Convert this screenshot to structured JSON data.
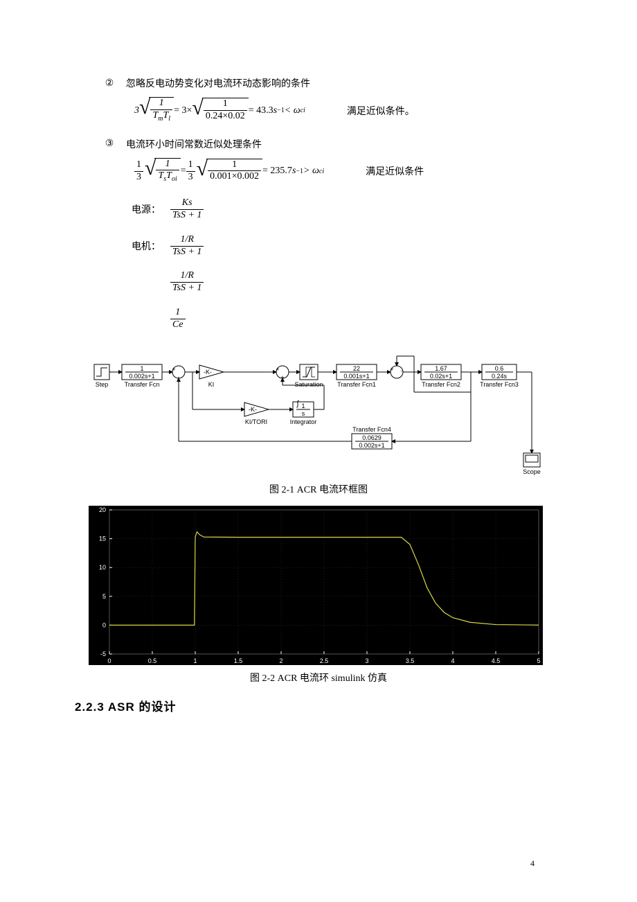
{
  "conditions": {
    "item2": {
      "marker": "②",
      "text": "忽略反电动势变化对电流环动态影响的条件"
    },
    "item3": {
      "marker": "③",
      "text": "电流环小时间常数近似处理条件"
    }
  },
  "eq1": {
    "coeff": "3",
    "num1": "1",
    "den1_a": "T",
    "den1_a_sub": "m",
    "den1_b": "T",
    "den1_b_sub": "l",
    "mid": " = 3× ",
    "num2": "1",
    "den2": "0.24×0.02",
    "result": " = 43.3",
    "unit": "s",
    "unit_sup": "−1",
    "cmp": " < ω",
    "cmp_sub": "ci",
    "satisfy": "满足近似条件。"
  },
  "eq2": {
    "front_num": "1",
    "front_den": "3",
    "num1": "1",
    "den1_a": "T",
    "den1_a_sub": "s",
    "den1_b": "T",
    "den1_b_sub": "oi",
    "mid_eq": " = ",
    "mid_num": "1",
    "mid_den": "3",
    "num2": "1",
    "den2": "0.001×0.002",
    "result": " = 235.7",
    "unit": "s",
    "unit_sup": "−1",
    "cmp": " > ω",
    "cmp_sub": "ci",
    "satisfy": "满足近似条件"
  },
  "tf": {
    "row1_label": "电源：",
    "row1_num": "Ks",
    "row1_den": "TsS + 1",
    "row2_label": "电机：",
    "row2_num": "1/R",
    "row2_den": "TsS + 1",
    "row3_num": "1/R",
    "row3_den": "TsS + 1",
    "row4_num": "1",
    "row4_den": "Ce"
  },
  "diagram": {
    "blocks": {
      "step": {
        "label": "Step"
      },
      "tf0": {
        "num": "1",
        "den": "0.002s+1",
        "label": "Transfer Fcn"
      },
      "ki": {
        "gain": "-K-",
        "label": "KI"
      },
      "kitori": {
        "gain": "-K-",
        "label": "KI/TORI"
      },
      "integrator": {
        "num": "1",
        "den": "s",
        "label": "Integrator"
      },
      "sat": {
        "label": "Saturation"
      },
      "tf1": {
        "num": "22",
        "den": "0.001s+1",
        "label": "Transfer Fcn1"
      },
      "tf2": {
        "num": "1.67",
        "den": "0.02s+1",
        "label": "Transfer Fcn2"
      },
      "tf3": {
        "num": "0.6",
        "den": "0.24s",
        "label": "Transfer Fcn3"
      },
      "tf4": {
        "num": "0.0629",
        "den": "0.002s+1",
        "label": "Transfer Fcn4"
      },
      "scope": {
        "label": "Scope"
      }
    }
  },
  "captions": {
    "fig21": "图 2-1    ACR 电流环框图",
    "fig22": "图 2-2    ACR 电流环 simulink 仿真"
  },
  "plot": {
    "bg": "#000000",
    "frame": "#555555",
    "grid": "#404040",
    "axis_text": "#ffffff",
    "line_color": "#d8d848",
    "x_ticks": [
      "0",
      "0.5",
      "1",
      "1.5",
      "2",
      "2.5",
      "3",
      "3.5",
      "4",
      "4.5",
      "5"
    ],
    "y_ticks": [
      "-5",
      "0",
      "5",
      "10",
      "15",
      "20"
    ],
    "ylim": [
      -5,
      20
    ],
    "xlim": [
      0,
      5
    ],
    "data": {
      "x": [
        0,
        0.99,
        1.0,
        1.02,
        1.05,
        1.1,
        1.5,
        2.0,
        3.0,
        3.4,
        3.5,
        3.6,
        3.7,
        3.8,
        3.9,
        4.0,
        4.2,
        4.5,
        5.0
      ],
      "y": [
        0,
        0,
        15.3,
        16.2,
        15.7,
        15.3,
        15.25,
        15.25,
        15.25,
        15.25,
        14.0,
        10.5,
        6.5,
        3.8,
        2.2,
        1.3,
        0.5,
        0.1,
        0.02
      ]
    }
  },
  "heading": "2.2.3 ASR 的设计",
  "pagenum": "4"
}
